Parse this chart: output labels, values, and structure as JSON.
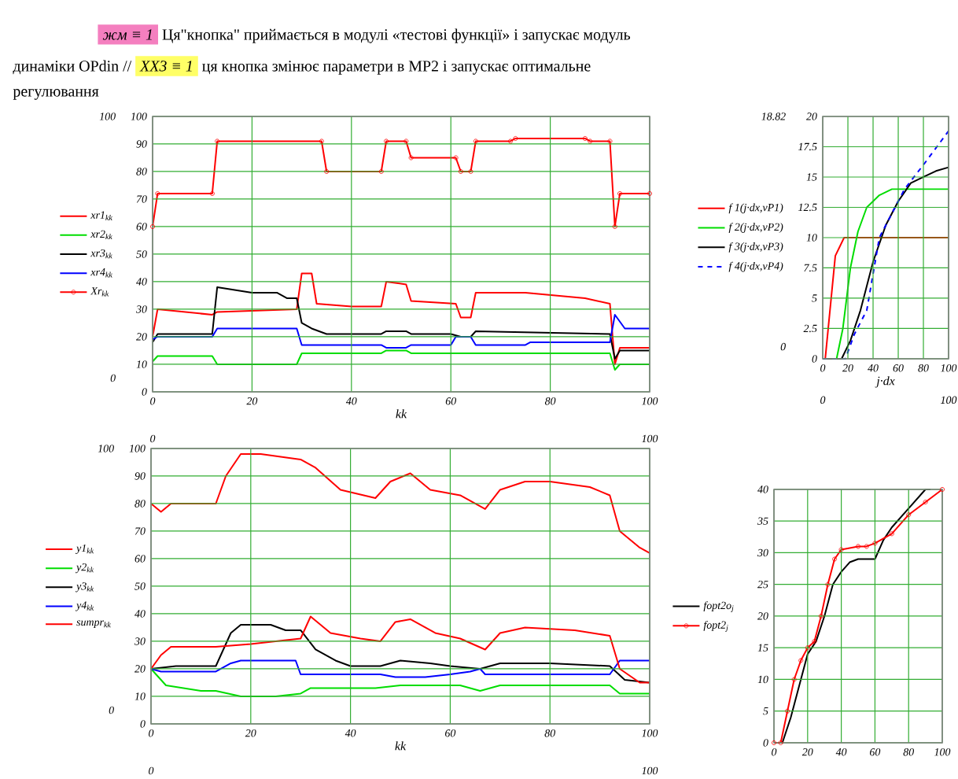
{
  "chart_data": [
    {
      "type": "other",
      "annotations": [
        "жм ≡ 1",
        "Ця\"кнопка\" приймається в модулі «тестові функції» і запускає модуль",
        "динаміки",
        "OPdin",
        "//",
        "XX3 ≡ 1",
        "ця кнопка змінює параметри в MP2 і запускає оптимальне",
        "регулювання"
      ],
      "colors": [
        "#f47fbf",
        null,
        null,
        null,
        null,
        "#ffff66",
        null,
        null
      ]
    },
    {
      "type": "line",
      "xlabel": "kk",
      "xlim": [
        0,
        100
      ],
      "ylim": [
        0,
        100
      ],
      "xticks": [
        0,
        20,
        40,
        60,
        80,
        100
      ],
      "yticks": [
        0,
        10,
        20,
        30,
        40,
        50,
        60,
        70,
        80,
        90,
        100
      ],
      "grid": true,
      "legend": "left",
      "annotations": [
        "100",
        "0",
        "0",
        "100"
      ],
      "series": [
        {
          "name": "xr1$_{kk}$",
          "color": "#ff0000",
          "x": [
            0,
            1,
            12,
            13,
            29,
            30,
            32,
            33,
            40,
            46,
            47,
            51,
            52,
            61,
            62,
            64,
            65,
            75,
            87,
            92,
            93,
            94,
            100
          ],
          "values": [
            20,
            30,
            28,
            29,
            30,
            43,
            43,
            32,
            31,
            31,
            40,
            39,
            33,
            32,
            27,
            27,
            36,
            36,
            34,
            32,
            10,
            16,
            16
          ]
        },
        {
          "name": "xr2$_{kk}$",
          "color": "#00dd00",
          "x": [
            0,
            1,
            12,
            13,
            29,
            30,
            46,
            47,
            51,
            52,
            92,
            93,
            94,
            100
          ],
          "values": [
            11,
            13,
            13,
            10,
            10,
            14,
            14,
            15,
            15,
            14,
            14,
            8,
            10,
            10
          ]
        },
        {
          "name": "xr3$_{kk}$",
          "color": "#000000",
          "x": [
            0,
            1,
            12,
            13,
            20,
            25,
            27,
            29,
            30,
            32,
            35,
            46,
            47,
            51,
            52,
            60,
            62,
            64,
            65,
            92,
            93,
            94,
            100
          ],
          "values": [
            18,
            21,
            21,
            38,
            36,
            36,
            34,
            34,
            25,
            23,
            21,
            21,
            22,
            22,
            21,
            21,
            20,
            20,
            22,
            21,
            12,
            15,
            15
          ]
        },
        {
          "name": "xr4$_{kk}$",
          "color": "#0000ff",
          "x": [
            0,
            1,
            12,
            13,
            29,
            30,
            46,
            47,
            51,
            52,
            60,
            61,
            64,
            65,
            75,
            76,
            92,
            93,
            95,
            100
          ],
          "values": [
            19,
            20,
            20,
            23,
            23,
            17,
            17,
            16,
            16,
            17,
            17,
            20,
            20,
            17,
            17,
            18,
            18,
            28,
            23,
            23
          ]
        },
        {
          "name": "Xr$_{kk}$",
          "color": "#ff0000",
          "marker": "circle",
          "x": [
            0,
            1,
            12,
            13,
            34,
            35,
            46,
            47,
            51,
            52,
            61,
            62,
            64,
            65,
            72,
            73,
            87,
            88,
            92,
            93,
            94,
            100
          ],
          "values": [
            60,
            72,
            72,
            91,
            91,
            80,
            80,
            91,
            91,
            85,
            85,
            80,
            80,
            91,
            91,
            92,
            92,
            91,
            91,
            60,
            72,
            72
          ]
        }
      ]
    },
    {
      "type": "line",
      "xlabel": "j·dx",
      "xlim": [
        0,
        100
      ],
      "ylim": [
        0,
        20
      ],
      "xticks": [
        0,
        20,
        40,
        60,
        80,
        100
      ],
      "yticks": [
        0,
        2.5,
        5,
        7.5,
        10,
        12.5,
        15,
        17.5,
        20
      ],
      "grid": true,
      "legend": "left",
      "annotations": [
        "18.82",
        "0",
        "0",
        "100"
      ],
      "series": [
        {
          "name": "f 1(j·dx,vP1)",
          "color": "#ff0000",
          "x": [
            0,
            2,
            10,
            17,
            100
          ],
          "values": [
            0,
            0,
            8.5,
            10,
            10
          ]
        },
        {
          "name": "f 2(j·dx,vP2)",
          "color": "#00dd00",
          "x": [
            0,
            11,
            16,
            22,
            28,
            35,
            45,
            55,
            100
          ],
          "values": [
            0,
            0,
            2.5,
            7.5,
            10.5,
            12.5,
            13.5,
            14,
            14
          ]
        },
        {
          "name": "f 3(j·dx,vP3)",
          "color": "#000000",
          "x": [
            0,
            15,
            22,
            30,
            40,
            50,
            60,
            70,
            80,
            90,
            100
          ],
          "values": [
            0,
            0,
            1.5,
            4,
            8,
            11,
            13,
            14.5,
            15,
            15.5,
            15.8
          ]
        },
        {
          "name": "f 4(j·dx,vP4)",
          "color": "#0000ff",
          "line_style": "dashed",
          "x": [
            0,
            18,
            25,
            35,
            45,
            55,
            65,
            80,
            100
          ],
          "values": [
            0,
            0,
            2,
            4,
            10,
            12,
            14,
            16,
            18.8
          ]
        }
      ]
    },
    {
      "type": "line",
      "xlabel": "kk",
      "xlim": [
        0,
        100
      ],
      "ylim": [
        0,
        100
      ],
      "xticks": [
        0,
        20,
        40,
        60,
        80,
        100
      ],
      "yticks": [
        0,
        10,
        20,
        30,
        40,
        50,
        60,
        70,
        80,
        90,
        100
      ],
      "grid": true,
      "legend": "left",
      "annotations": [
        "100",
        "0",
        "0",
        "100"
      ],
      "series": [
        {
          "name": "y1$_{kk}$",
          "color": "#ff0000",
          "x": [
            0,
            2,
            4,
            10,
            13,
            15,
            18,
            22,
            30,
            33,
            38,
            45,
            48,
            52,
            56,
            62,
            67,
            70,
            75,
            80,
            88,
            92,
            94,
            98,
            100
          ],
          "values": [
            80,
            77,
            80,
            80,
            80,
            90,
            98,
            98,
            96,
            93,
            85,
            82,
            88,
            91,
            85,
            83,
            78,
            85,
            88,
            88,
            86,
            83,
            70,
            64,
            62
          ]
        },
        {
          "name": "y2$_{kk}$",
          "color": "#00dd00",
          "x": [
            0,
            3,
            10,
            13,
            18,
            25,
            30,
            32,
            45,
            50,
            62,
            66,
            70,
            92,
            94,
            100
          ],
          "values": [
            20,
            14,
            12,
            12,
            10,
            10,
            11,
            13,
            13,
            14,
            14,
            12,
            14,
            14,
            11,
            11
          ]
        },
        {
          "name": "y3$_{kk}$",
          "color": "#000000",
          "x": [
            0,
            5,
            13,
            16,
            18,
            24,
            27,
            30,
            33,
            37,
            40,
            46,
            50,
            56,
            60,
            66,
            70,
            80,
            92,
            95,
            100
          ],
          "values": [
            20,
            21,
            21,
            33,
            36,
            36,
            34,
            34,
            27,
            23,
            21,
            21,
            23,
            22,
            21,
            20,
            22,
            22,
            21,
            16,
            15
          ]
        },
        {
          "name": "y4$_{kk}$",
          "color": "#0000ff",
          "x": [
            0,
            2,
            13,
            16,
            18,
            29,
            30,
            46,
            49,
            55,
            60,
            64,
            66,
            67,
            92,
            94,
            100
          ],
          "values": [
            20,
            19,
            19,
            22,
            23,
            23,
            18,
            18,
            17,
            17,
            18,
            19,
            20,
            18,
            18,
            23,
            23
          ]
        },
        {
          "name": "sumpr$_{kk}$",
          "color": "#ff0000",
          "x": [
            0,
            2,
            4,
            13,
            20,
            30,
            32,
            36,
            42,
            46,
            49,
            52,
            57,
            62,
            67,
            70,
            75,
            85,
            92,
            94,
            98,
            100
          ],
          "values": [
            20,
            25,
            28,
            28,
            29,
            31,
            39,
            33,
            31,
            30,
            37,
            38,
            33,
            31,
            27,
            33,
            35,
            34,
            32,
            20,
            15,
            15
          ]
        }
      ]
    },
    {
      "type": "line",
      "xlim": [
        0,
        100
      ],
      "ylim": [
        0,
        40
      ],
      "xticks": [
        0,
        20,
        40,
        60,
        80,
        100
      ],
      "yticks": [
        0,
        5,
        10,
        15,
        20,
        25,
        30,
        35,
        40
      ],
      "grid": true,
      "legend": "left",
      "series": [
        {
          "name": "fopt2o$_{j}$",
          "color": "#000000",
          "x": [
            0,
            5,
            10,
            15,
            20,
            25,
            30,
            35,
            40,
            45,
            50,
            60,
            65,
            70,
            80,
            90,
            93
          ],
          "values": [
            0,
            0,
            4,
            9,
            14,
            16,
            20,
            25,
            27,
            28.5,
            29,
            29,
            32,
            34,
            37,
            40,
            40
          ]
        },
        {
          "name": "fopt2$_{j}$",
          "color": "#ff0000",
          "marker": "circle",
          "x": [
            0,
            4,
            8,
            12,
            16,
            20,
            24,
            28,
            32,
            36,
            40,
            50,
            55,
            60,
            70,
            80,
            90,
            100
          ],
          "values": [
            0,
            0,
            5,
            10,
            13,
            15,
            16,
            20,
            25,
            29,
            30.5,
            31,
            31,
            31.5,
            33,
            36,
            38,
            40
          ]
        }
      ]
    }
  ]
}
